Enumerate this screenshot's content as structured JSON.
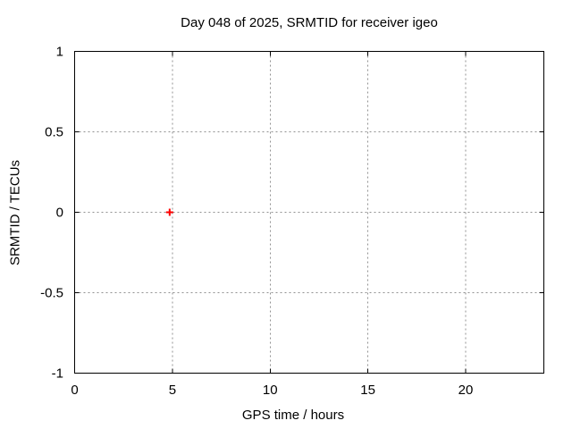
{
  "page": {
    "background": "#ffffff"
  },
  "chart_data": {
    "type": "scatter",
    "title": "Day 048 of 2025, SRMTID for receiver igeo",
    "xlabel": "GPS time / hours",
    "ylabel": "SRMTID / TECUs",
    "xlim": [
      0,
      24
    ],
    "ylim": [
      -1,
      1
    ],
    "xticks": [
      {
        "v": 0,
        "label": "0"
      },
      {
        "v": 5,
        "label": "5"
      },
      {
        "v": 10,
        "label": "10"
      },
      {
        "v": 15,
        "label": "15"
      },
      {
        "v": 20,
        "label": "20"
      }
    ],
    "yticks": [
      {
        "v": -1,
        "label": "-1"
      },
      {
        "v": -0.5,
        "label": "-0.5"
      },
      {
        "v": 0,
        "label": "0"
      },
      {
        "v": 0.5,
        "label": "0.5"
      },
      {
        "v": 1,
        "label": "1"
      }
    ],
    "grid": true,
    "grid_style": "dotted",
    "legend": "none",
    "colors": {
      "background": "#ffffff",
      "axis": "#000000",
      "grid": "#909090",
      "text": "#000000"
    },
    "series": [
      {
        "name": "SRMTID",
        "marker": "plus",
        "color": "#ff0000",
        "points": [
          {
            "x": 4.86,
            "y": 0.0
          }
        ]
      }
    ]
  }
}
